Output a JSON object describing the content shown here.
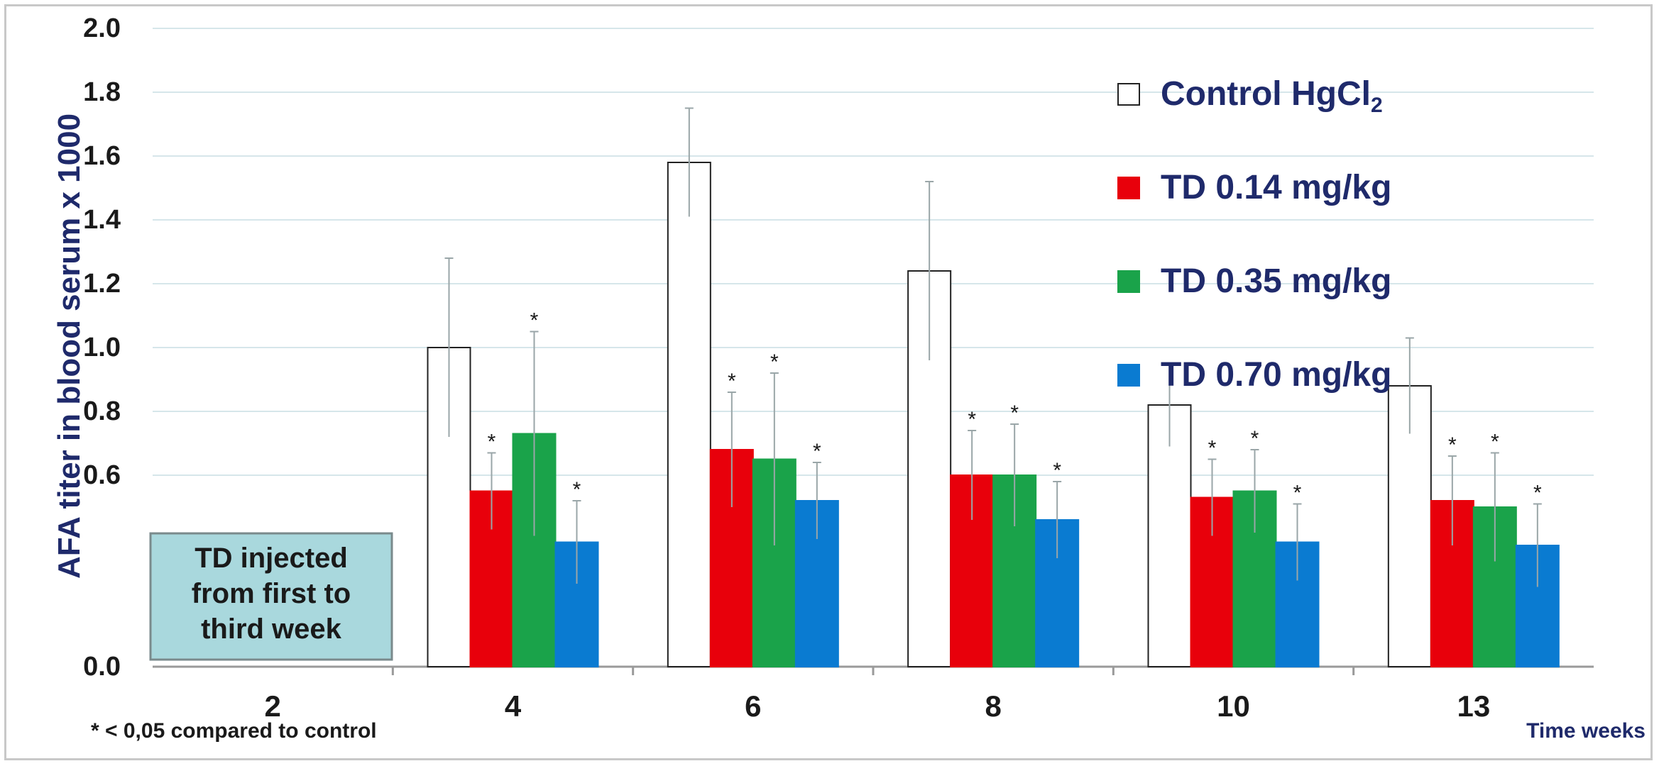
{
  "chart_data": {
    "type": "bar",
    "title": "",
    "ylabel": "AFA titer in blood serum x 1000",
    "xlabel": "Time weeks",
    "ylim": [
      0,
      2.0
    ],
    "y_ticks": [
      "0.0",
      "0.6",
      "0.8",
      "1.0",
      "1.2",
      "1.4",
      "1.6",
      "1.8",
      "2.0"
    ],
    "categories": [
      "2",
      "4",
      "6",
      "8",
      "10",
      "13"
    ],
    "series": [
      {
        "name": "Control HgCl",
        "name_subscript": "2",
        "color": "#ffffff",
        "stroke": "#222222",
        "values": [
          null,
          1.0,
          1.58,
          1.24,
          0.82,
          0.88
        ],
        "errors": [
          null,
          0.28,
          0.17,
          0.28,
          0.13,
          0.15
        ],
        "significant": [
          false,
          false,
          false,
          false,
          false,
          false
        ]
      },
      {
        "name": "TD 0.14 mg/kg",
        "color": "#e8000b",
        "stroke": "#e8000b",
        "values": [
          null,
          0.55,
          0.68,
          0.6,
          0.53,
          0.52
        ],
        "errors": [
          null,
          0.12,
          0.18,
          0.14,
          0.12,
          0.14
        ],
        "significant": [
          false,
          true,
          true,
          true,
          true,
          true
        ]
      },
      {
        "name": "TD 0.35 mg/kg",
        "color": "#1aa34a",
        "stroke": "#1aa34a",
        "values": [
          null,
          0.73,
          0.65,
          0.6,
          0.55,
          0.5
        ],
        "errors": [
          null,
          0.32,
          0.27,
          0.16,
          0.13,
          0.17
        ],
        "significant": [
          false,
          true,
          true,
          true,
          true,
          true
        ]
      },
      {
        "name": "TD 0.70 mg/kg",
        "color": "#0a7bd1",
        "stroke": "#0a7bd1",
        "values": [
          null,
          0.39,
          0.52,
          0.46,
          0.39,
          0.38
        ],
        "errors": [
          null,
          0.13,
          0.12,
          0.12,
          0.12,
          0.13
        ],
        "significant": [
          false,
          true,
          true,
          true,
          true,
          true
        ]
      }
    ],
    "significance_marker": "*",
    "legend_position": "top-right",
    "grid": true
  },
  "annotations": {
    "box_lines": [
      "TD injected",
      "from first to",
      "third  week"
    ],
    "footnote": "* < 0,05 compared to control"
  },
  "colors": {
    "text_navy": "#1f2a6b",
    "axis": "#9a9a9a",
    "grid": "#d6e6ea",
    "box_fill": "#a9d8dd",
    "box_border": "#7a8a8c"
  }
}
